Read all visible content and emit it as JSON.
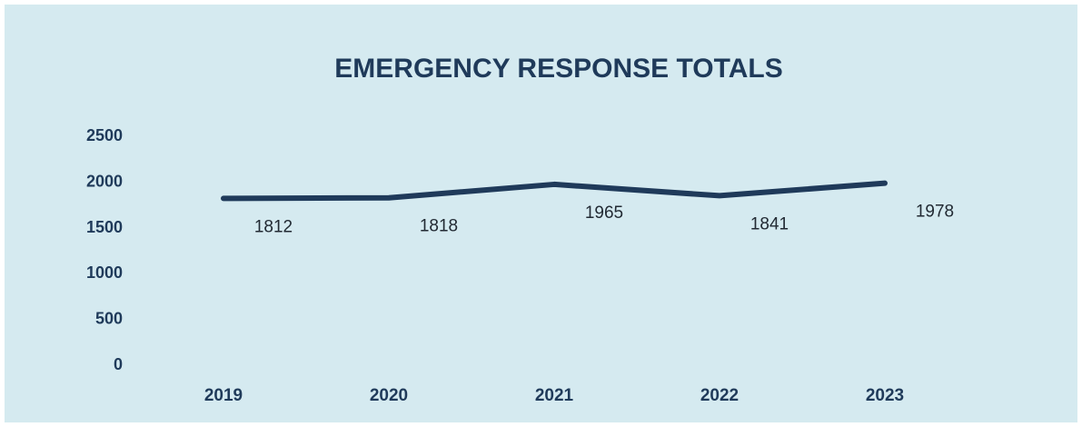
{
  "chart_data": {
    "type": "line",
    "title": "EMERGENCY RESPONSE TOTALS",
    "xlabel": "",
    "ylabel": "",
    "categories": [
      "2019",
      "2020",
      "2021",
      "2022",
      "2023"
    ],
    "series": [
      {
        "values": [
          1812,
          1818,
          1965,
          1841,
          1978
        ]
      }
    ],
    "data_labels": [
      "1812",
      "1818",
      "1965",
      "1841",
      "1978"
    ],
    "y_ticks": [
      "0",
      "500",
      "1000",
      "1500",
      "2000",
      "2500"
    ],
    "ylim": [
      0,
      2500
    ],
    "grid": false,
    "legend": "none",
    "colors": {
      "background": "#d5eaf0",
      "line": "#1f3a5a",
      "text": "#1f3a5a"
    }
  }
}
